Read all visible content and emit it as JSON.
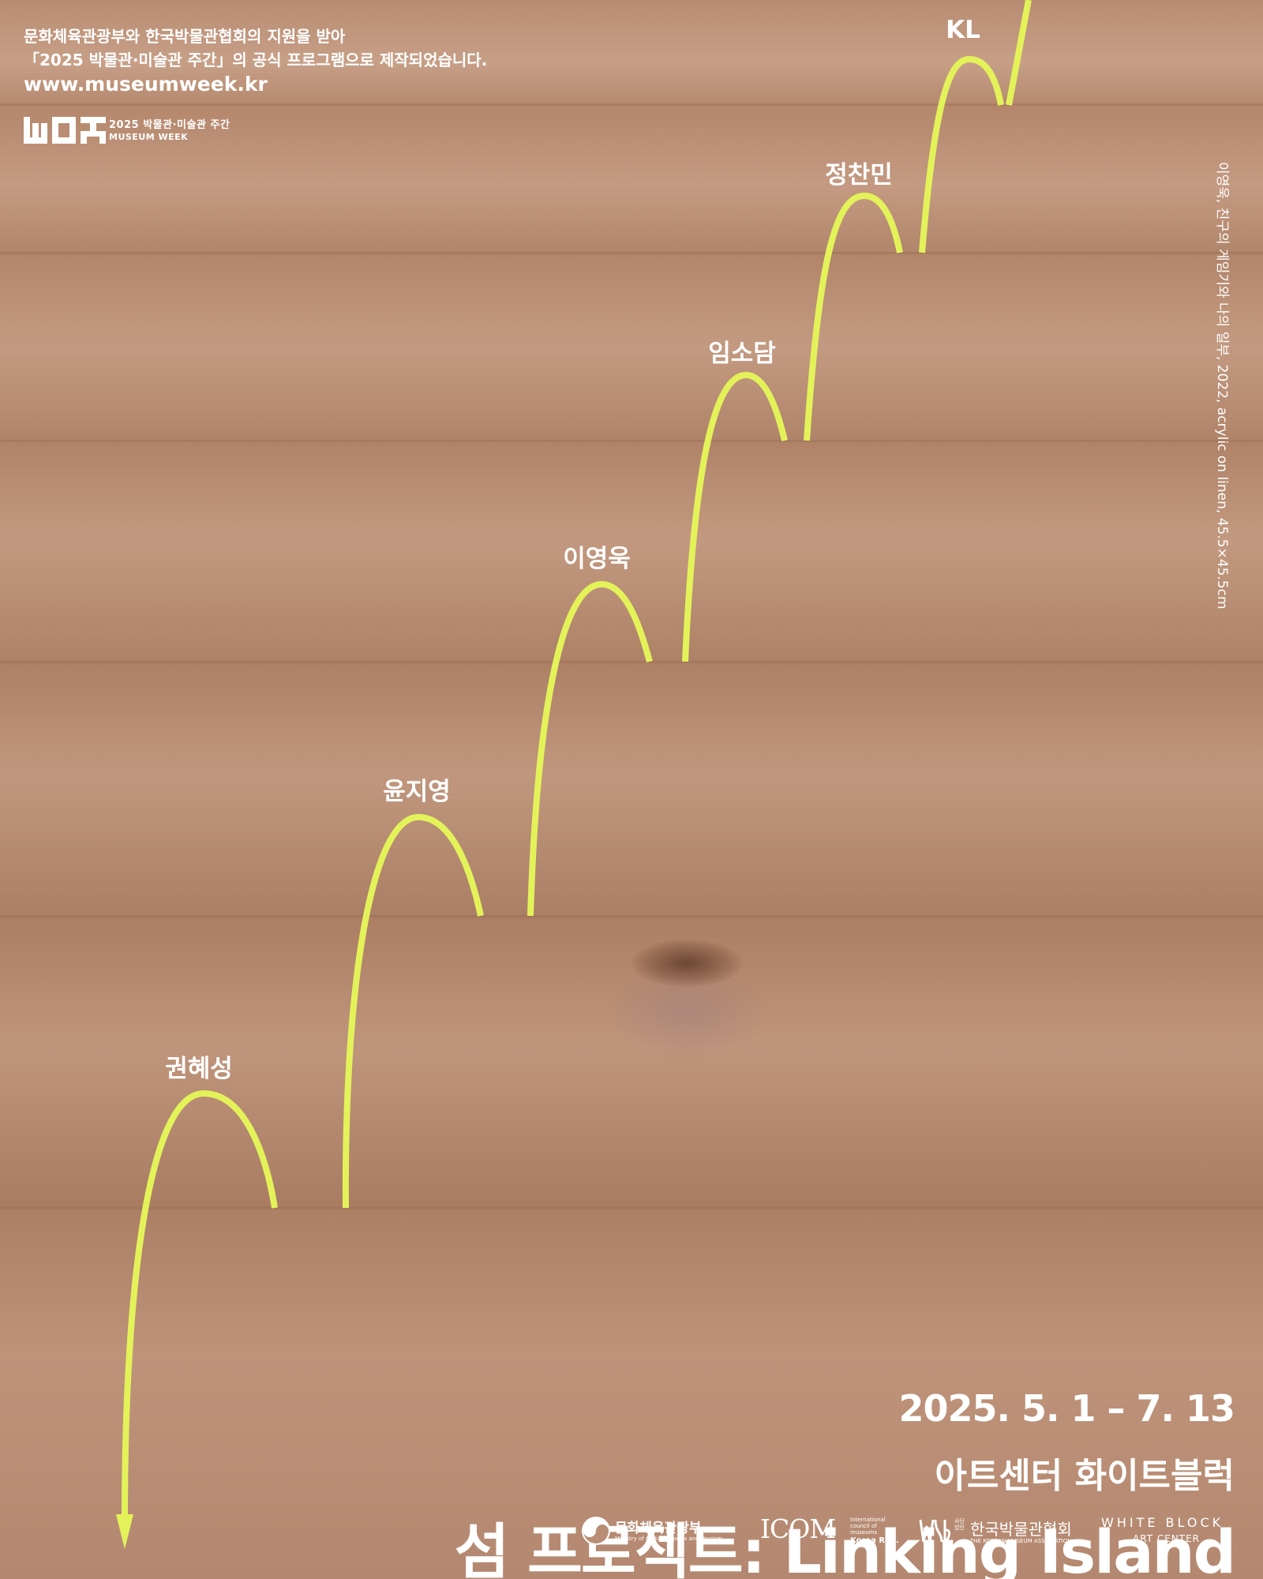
{
  "header": {
    "support_line1": "문화체육관광부와 한국박물관협회의 지원을 받아",
    "support_line2": "「2025 박물관·미술관 주간」의 공식 프로그램으로 제작되었습니다.",
    "url": "www.museumweek.kr",
    "museum_week_logo_line1": "2025 박물관·미술관 주간",
    "museum_week_logo_line2": "MUSEUM WEEK"
  },
  "artists": [
    "권혜성",
    "윤지영",
    "이영욱",
    "임소담",
    "정찬민",
    "KL"
  ],
  "artwork_credit": "이영욱, 친구의 게임기와 나의 일부, 2022, acrylic on linen, 45.5×45.5cm",
  "exhibition": {
    "dates": "2025. 5. 1 – 7. 13",
    "venue": "아트센터 화이트블럭",
    "title": "섬 프로젝트: Linking Island"
  },
  "partners": {
    "ministry_name": "문화체육관광부",
    "ministry_sub": "Ministry of Culture, Sports and Tourism",
    "icom_name": "ICOM",
    "icom_sub": "International council of museums",
    "icom_sub2": "Korea Rep.",
    "kma_prefix": "사단 법인",
    "kma_name": "한국박물관협회",
    "kma_sub": "THE KOREAN MUSEUM ASSOCIATION",
    "whiteblock_name": "WHITE BLOCK",
    "whiteblock_sub": "ART CENTER"
  },
  "colors": {
    "background": "#b98e75",
    "arrow": "#e4f25a",
    "text": "#ffffff"
  },
  "icons": {
    "arrowhead": "arrow-down-icon",
    "ministry_emblem": "taegeuk-icon"
  }
}
